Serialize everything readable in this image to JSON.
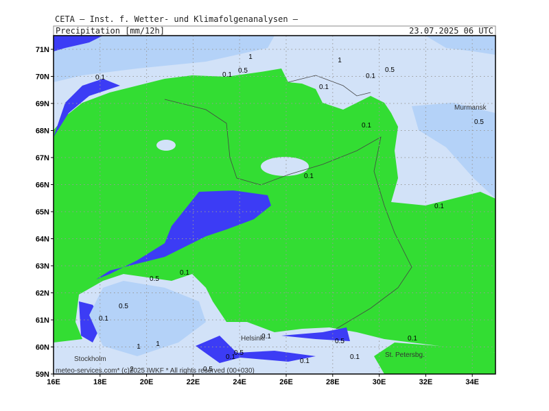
{
  "header": {
    "institute": "CETA – Inst. f. Wetter- und Klimafolgenanalysen –",
    "title": "Precipitation [mm/12h]",
    "valid": "23.07.2025 06 UTC"
  },
  "map": {
    "lat_labels": [
      "71N",
      "70N",
      "69N",
      "68N",
      "67N",
      "66N",
      "65N",
      "64N",
      "63N",
      "62N",
      "61N",
      "60N",
      "59N"
    ],
    "lon_labels": [
      "16E",
      "18E",
      "20E",
      "22E",
      "24E",
      "26E",
      "28E",
      "30E",
      "32E",
      "34E"
    ],
    "cities": [
      "Murmansk",
      "Helsinki",
      "St. Petersbg.",
      "Stockholm"
    ],
    "contour_labels": [
      "1",
      "0.5",
      "0.1",
      "1",
      "0.1",
      "0.5",
      "0.1",
      "0.1",
      "0.1",
      "0.5",
      "0.1",
      "0.1",
      "0.5",
      "0.1",
      "0.5",
      "0.1",
      "1",
      "1",
      "0.1",
      "0.5",
      "0.1",
      "0.1",
      "0.5",
      "0.1",
      "0.1",
      "2",
      "0.5"
    ],
    "credit": "meteo-services.com* (c)2025 IWKF * All rights reserved (00+030)"
  }
}
